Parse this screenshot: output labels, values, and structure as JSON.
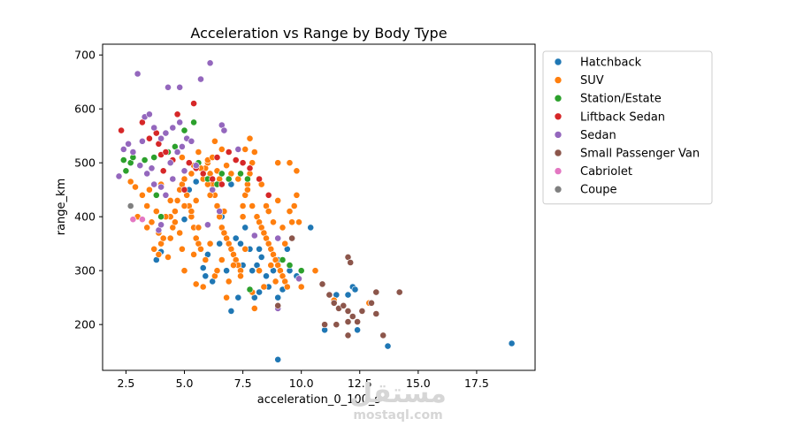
{
  "chart_data": {
    "type": "scatter",
    "title": "Acceleration vs Range by Body Type",
    "xlabel": "acceleration_0_100_s",
    "ylabel": "range_km",
    "xlim": [
      1.5,
      20.0
    ],
    "ylim": [
      115,
      720
    ],
    "xticks": [
      2.5,
      5.0,
      7.5,
      10.0,
      12.5,
      15.0,
      17.5
    ],
    "xtick_labels": [
      "2.5",
      "5.0",
      "7.5",
      "10.0",
      "12.5",
      "15.0",
      "17.5"
    ],
    "yticks": [
      200,
      300,
      400,
      500,
      600,
      700
    ],
    "ytick_labels": [
      "200",
      "300",
      "400",
      "500",
      "600",
      "700"
    ],
    "legend_position": "outside-right",
    "series": [
      {
        "name": "Hatchback",
        "color": "#1f77b4",
        "points": [
          [
            19.0,
            165
          ],
          [
            13.7,
            160
          ],
          [
            9.0,
            135
          ],
          [
            10.4,
            380
          ],
          [
            11.0,
            190
          ],
          [
            12.4,
            190
          ],
          [
            12.6,
            225
          ],
          [
            12.2,
            270
          ],
          [
            12.0,
            255
          ],
          [
            12.3,
            265
          ],
          [
            11.5,
            255
          ],
          [
            7.0,
            225
          ],
          [
            7.3,
            250
          ],
          [
            8.0,
            250
          ],
          [
            8.2,
            260
          ],
          [
            9.0,
            250
          ],
          [
            9.2,
            265
          ],
          [
            8.5,
            290
          ],
          [
            8.8,
            300
          ],
          [
            9.5,
            300
          ],
          [
            9.0,
            320
          ],
          [
            8.3,
            325
          ],
          [
            7.8,
            340
          ],
          [
            7.5,
            310
          ],
          [
            7.4,
            350
          ],
          [
            7.2,
            360
          ],
          [
            6.5,
            350
          ],
          [
            6.0,
            330
          ],
          [
            5.8,
            305
          ],
          [
            5.9,
            290
          ],
          [
            6.8,
            300
          ],
          [
            7.0,
            460
          ],
          [
            6.0,
            470
          ],
          [
            5.5,
            465
          ],
          [
            5.2,
            450
          ],
          [
            3.8,
            320
          ],
          [
            4.0,
            335
          ],
          [
            8.6,
            270
          ],
          [
            8.1,
            310
          ],
          [
            7.6,
            380
          ],
          [
            6.6,
            400
          ],
          [
            9.4,
            340
          ],
          [
            10.0,
            300
          ],
          [
            6.2,
            280
          ],
          [
            5.0,
            395
          ],
          [
            9.8,
            290
          ],
          [
            7.9,
            300
          ],
          [
            8.2,
            340
          ]
        ]
      },
      {
        "name": "SUV",
        "color": "#ff7f0e",
        "points": [
          [
            2.7,
            465
          ],
          [
            2.9,
            455
          ],
          [
            3.2,
            440
          ],
          [
            3.4,
            420
          ],
          [
            3.6,
            390
          ],
          [
            3.7,
            340
          ],
          [
            3.9,
            330
          ],
          [
            4.0,
            350
          ],
          [
            4.1,
            360
          ],
          [
            4.3,
            325
          ],
          [
            4.4,
            400
          ],
          [
            4.5,
            380
          ],
          [
            4.6,
            410
          ],
          [
            4.7,
            430
          ],
          [
            4.8,
            450
          ],
          [
            4.9,
            460
          ],
          [
            5.0,
            470
          ],
          [
            5.1,
            440
          ],
          [
            5.2,
            420
          ],
          [
            5.3,
            400
          ],
          [
            5.4,
            380
          ],
          [
            5.5,
            360
          ],
          [
            5.6,
            350
          ],
          [
            5.7,
            340
          ],
          [
            5.8,
            470
          ],
          [
            5.9,
            490
          ],
          [
            6.0,
            500
          ],
          [
            6.1,
            480
          ],
          [
            6.2,
            460
          ],
          [
            6.3,
            440
          ],
          [
            6.4,
            420
          ],
          [
            6.5,
            400
          ],
          [
            6.6,
            380
          ],
          [
            6.7,
            370
          ],
          [
            6.8,
            360
          ],
          [
            6.9,
            350
          ],
          [
            7.0,
            340
          ],
          [
            7.1,
            330
          ],
          [
            7.2,
            320
          ],
          [
            7.3,
            310
          ],
          [
            7.4,
            300
          ],
          [
            7.5,
            420
          ],
          [
            7.6,
            440
          ],
          [
            7.7,
            460
          ],
          [
            7.8,
            480
          ],
          [
            7.9,
            500
          ],
          [
            8.0,
            520
          ],
          [
            7.8,
            545
          ],
          [
            8.1,
            400
          ],
          [
            8.2,
            390
          ],
          [
            8.3,
            380
          ],
          [
            8.4,
            370
          ],
          [
            8.5,
            360
          ],
          [
            8.6,
            350
          ],
          [
            8.7,
            340
          ],
          [
            8.8,
            330
          ],
          [
            8.9,
            320
          ],
          [
            9.0,
            310
          ],
          [
            9.1,
            300
          ],
          [
            9.2,
            290
          ],
          [
            9.3,
            280
          ],
          [
            9.4,
            270
          ],
          [
            9.5,
            410
          ],
          [
            9.6,
            390
          ],
          [
            9.7,
            420
          ],
          [
            9.8,
            440
          ],
          [
            9.0,
            500
          ],
          [
            9.5,
            500
          ],
          [
            9.8,
            485
          ],
          [
            10.0,
            270
          ],
          [
            10.6,
            300
          ],
          [
            11.4,
            245
          ],
          [
            12.9,
            240
          ],
          [
            8.0,
            230
          ],
          [
            6.8,
            250
          ],
          [
            5.8,
            270
          ],
          [
            6.3,
            290
          ],
          [
            4.2,
            400
          ],
          [
            4.6,
            390
          ],
          [
            5.0,
            420
          ],
          [
            5.5,
            430
          ],
          [
            6.0,
            460
          ],
          [
            6.5,
            470
          ],
          [
            7.0,
            480
          ],
          [
            7.5,
            400
          ],
          [
            8.5,
            420
          ],
          [
            9.0,
            430
          ],
          [
            6.3,
            540
          ],
          [
            6.6,
            525
          ],
          [
            5.6,
            520
          ],
          [
            6.9,
            520
          ],
          [
            4.9,
            510
          ],
          [
            5.4,
            495
          ],
          [
            6.0,
            505
          ],
          [
            6.4,
            485
          ],
          [
            7.3,
            470
          ],
          [
            7.7,
            450
          ],
          [
            8.3,
            460
          ],
          [
            8.6,
            410
          ],
          [
            9.2,
            380
          ],
          [
            9.6,
            360
          ],
          [
            9.3,
            350
          ],
          [
            8.9,
            280
          ],
          [
            8.4,
            270
          ],
          [
            7.9,
            260
          ],
          [
            7.4,
            290
          ],
          [
            6.9,
            280
          ],
          [
            6.4,
            300
          ],
          [
            5.9,
            320
          ],
          [
            5.4,
            330
          ],
          [
            4.9,
            340
          ],
          [
            4.4,
            360
          ],
          [
            3.9,
            370
          ],
          [
            3.4,
            380
          ],
          [
            3.0,
            400
          ],
          [
            3.5,
            450
          ],
          [
            4.0,
            460
          ],
          [
            4.5,
            470
          ],
          [
            5.3,
            480
          ],
          [
            5.7,
            490
          ],
          [
            6.2,
            510
          ],
          [
            6.8,
            495
          ],
          [
            7.2,
            505
          ],
          [
            7.6,
            525
          ],
          [
            6.1,
            440
          ],
          [
            5.3,
            410
          ],
          [
            4.4,
            430
          ],
          [
            3.8,
            410
          ],
          [
            4.8,
            370
          ],
          [
            5.6,
            380
          ],
          [
            6.7,
            410
          ],
          [
            7.9,
            420
          ],
          [
            8.8,
            390
          ],
          [
            9.9,
            390
          ],
          [
            8.2,
            300
          ],
          [
            7.1,
            310
          ],
          [
            6.1,
            350
          ],
          [
            5.0,
            300
          ],
          [
            5.5,
            275
          ],
          [
            6.6,
            320
          ],
          [
            7.6,
            340
          ],
          [
            8.7,
            310
          ]
        ]
      },
      {
        "name": "Station/Estate",
        "color": "#2ca02c",
        "points": [
          [
            2.4,
            505
          ],
          [
            2.7,
            500
          ],
          [
            2.5,
            485
          ],
          [
            2.8,
            510
          ],
          [
            3.3,
            505
          ],
          [
            3.7,
            510
          ],
          [
            3.8,
            440
          ],
          [
            4.0,
            400
          ],
          [
            4.6,
            530
          ],
          [
            5.0,
            560
          ],
          [
            5.4,
            575
          ],
          [
            5.6,
            500
          ],
          [
            6.0,
            470
          ],
          [
            6.4,
            460
          ],
          [
            6.6,
            480
          ],
          [
            6.9,
            470
          ],
          [
            7.4,
            480
          ],
          [
            7.7,
            470
          ],
          [
            9.2,
            320
          ],
          [
            9.5,
            310
          ],
          [
            10.0,
            300
          ],
          [
            7.8,
            265
          ],
          [
            4.3,
            520
          ]
        ]
      },
      {
        "name": "Liftback Sedan",
        "color": "#d62728",
        "points": [
          [
            2.3,
            560
          ],
          [
            3.2,
            575
          ],
          [
            3.5,
            545
          ],
          [
            3.8,
            555
          ],
          [
            3.9,
            535
          ],
          [
            4.0,
            515
          ],
          [
            4.2,
            520
          ],
          [
            4.7,
            590
          ],
          [
            5.4,
            610
          ],
          [
            4.5,
            505
          ],
          [
            5.2,
            500
          ],
          [
            5.5,
            490
          ],
          [
            5.8,
            480
          ],
          [
            6.2,
            470
          ],
          [
            6.6,
            460
          ],
          [
            6.9,
            520
          ],
          [
            7.2,
            505
          ],
          [
            7.5,
            500
          ],
          [
            7.8,
            490
          ],
          [
            8.2,
            470
          ],
          [
            8.6,
            440
          ],
          [
            4.1,
            485
          ],
          [
            5.0,
            450
          ],
          [
            6.4,
            510
          ]
        ]
      },
      {
        "name": "Sedan",
        "color": "#9467bd",
        "points": [
          [
            3.0,
            665
          ],
          [
            4.3,
            640
          ],
          [
            4.8,
            640
          ],
          [
            5.7,
            655
          ],
          [
            6.1,
            685
          ],
          [
            3.3,
            585
          ],
          [
            3.5,
            590
          ],
          [
            3.7,
            565
          ],
          [
            4.0,
            545
          ],
          [
            4.2,
            555
          ],
          [
            4.5,
            565
          ],
          [
            4.8,
            575
          ],
          [
            5.1,
            545
          ],
          [
            5.3,
            540
          ],
          [
            6.6,
            570
          ],
          [
            6.7,
            560
          ],
          [
            7.3,
            525
          ],
          [
            2.6,
            535
          ],
          [
            2.8,
            520
          ],
          [
            2.4,
            525
          ],
          [
            2.2,
            475
          ],
          [
            3.1,
            495
          ],
          [
            3.4,
            480
          ],
          [
            3.7,
            460
          ],
          [
            4.0,
            455
          ],
          [
            4.2,
            440
          ],
          [
            4.4,
            500
          ],
          [
            4.7,
            520
          ],
          [
            4.9,
            530
          ],
          [
            5.5,
            495
          ],
          [
            3.9,
            375
          ],
          [
            4.0,
            385
          ],
          [
            6.0,
            385
          ],
          [
            6.5,
            410
          ],
          [
            8.0,
            365
          ],
          [
            9.0,
            360
          ],
          [
            9.9,
            285
          ],
          [
            9.0,
            230
          ],
          [
            3.6,
            490
          ],
          [
            4.5,
            470
          ],
          [
            3.2,
            540
          ],
          [
            5.0,
            485
          ],
          [
            6.2,
            450
          ]
        ]
      },
      {
        "name": "Small Passenger Van",
        "color": "#8c564b",
        "points": [
          [
            10.9,
            275
          ],
          [
            11.0,
            200
          ],
          [
            11.2,
            255
          ],
          [
            11.4,
            240
          ],
          [
            11.6,
            230
          ],
          [
            11.8,
            235
          ],
          [
            12.0,
            325
          ],
          [
            12.1,
            315
          ],
          [
            12.0,
            225
          ],
          [
            12.2,
            215
          ],
          [
            12.0,
            205
          ],
          [
            12.0,
            180
          ],
          [
            12.6,
            225
          ],
          [
            12.4,
            205
          ],
          [
            13.2,
            260
          ],
          [
            13.2,
            220
          ],
          [
            13.5,
            180
          ],
          [
            14.2,
            260
          ],
          [
            13.0,
            240
          ],
          [
            11.5,
            200
          ],
          [
            9.0,
            235
          ],
          [
            9.6,
            360
          ]
        ]
      },
      {
        "name": "Cabriolet",
        "color": "#e377c2",
        "points": [
          [
            2.8,
            395
          ],
          [
            3.2,
            395
          ]
        ]
      },
      {
        "name": "Coupe",
        "color": "#7f7f7f",
        "points": [
          [
            2.7,
            420
          ]
        ]
      }
    ]
  },
  "watermark": {
    "main": "مستقل",
    "sub": "mostaql.com"
  }
}
